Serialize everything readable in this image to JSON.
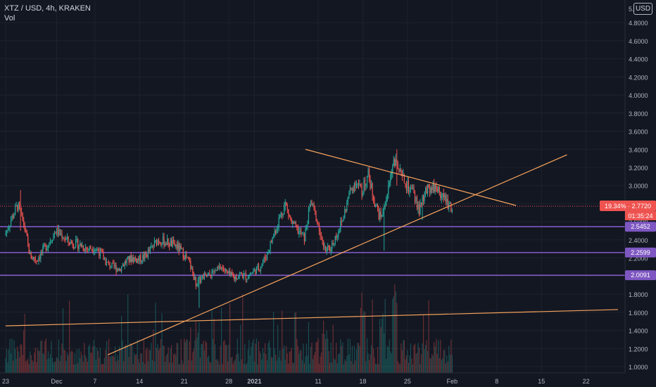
{
  "header": {
    "symbol_line": "XTZ / USD, 4h, KRAKEN",
    "volume_label": "Vol",
    "currency_button": "USD"
  },
  "price_tags": {
    "current": {
      "change": "19.34%",
      "price": "2.7720",
      "countdown": "01:35:24",
      "color": "#ef5350"
    },
    "levels": [
      {
        "price": "2.5452",
        "color": "#7e57c2"
      },
      {
        "price": "2.2599",
        "color": "#7e57c2"
      },
      {
        "price": "2.0091",
        "color": "#7e57c2"
      }
    ]
  },
  "colors": {
    "background": "#131722",
    "up": "#26a69a",
    "down": "#ef5350",
    "trendline": "#f7a35c",
    "level_line": "#7e57c2",
    "grid": "#1e222d"
  },
  "chart_data": {
    "type": "candlestick",
    "timeframe": "4h",
    "y_axis": {
      "range": [
        0.93,
        5.05
      ],
      "ticks": [
        "4.8000",
        "4.6000",
        "4.4000",
        "4.2000",
        "4.0000",
        "3.8000",
        "3.6000",
        "3.4000",
        "3.2000",
        "3.0000",
        "2.8000",
        "2.6000",
        "2.4000",
        "2.2000",
        "2.0000",
        "1.8000",
        "1.6000",
        "1.4000",
        "1.2000",
        "1.0000"
      ],
      "top_partial_label": "5."
    },
    "x_axis": {
      "ticks": [
        "23",
        "Dec",
        "7",
        "14",
        "21",
        "28",
        "2021",
        "11",
        "18",
        "25",
        "Feb",
        "8",
        "15",
        "22"
      ],
      "range": [
        "2020-11-23",
        "2021-02-27"
      ]
    },
    "price_path": [
      [
        "2020-11-23",
        2.45
      ],
      [
        "2020-11-24",
        2.62
      ],
      [
        "2020-11-25",
        2.78
      ],
      [
        "2020-11-26",
        2.58
      ],
      [
        "2020-11-27",
        2.22
      ],
      [
        "2020-11-28",
        2.18
      ],
      [
        "2020-11-29",
        2.28
      ],
      [
        "2020-11-30",
        2.38
      ],
      [
        "2020-12-01",
        2.5
      ],
      [
        "2020-12-02",
        2.45
      ],
      [
        "2020-12-03",
        2.38
      ],
      [
        "2020-12-04",
        2.36
      ],
      [
        "2020-12-05",
        2.34
      ],
      [
        "2020-12-06",
        2.3
      ],
      [
        "2020-12-07",
        2.32
      ],
      [
        "2020-12-08",
        2.26
      ],
      [
        "2020-12-09",
        2.14
      ],
      [
        "2020-12-10",
        2.1
      ],
      [
        "2020-12-11",
        2.08
      ],
      [
        "2020-12-12",
        2.16
      ],
      [
        "2020-12-13",
        2.2
      ],
      [
        "2020-12-14",
        2.18
      ],
      [
        "2020-12-15",
        2.22
      ],
      [
        "2020-12-16",
        2.3
      ],
      [
        "2020-12-17",
        2.4
      ],
      [
        "2020-12-18",
        2.38
      ],
      [
        "2020-12-19",
        2.36
      ],
      [
        "2020-12-20",
        2.33
      ],
      [
        "2020-12-21",
        2.25
      ],
      [
        "2020-12-22",
        2.14
      ],
      [
        "2020-12-23",
        1.92
      ],
      [
        "2020-12-24",
        1.98
      ],
      [
        "2020-12-25",
        2.0
      ],
      [
        "2020-12-26",
        2.05
      ],
      [
        "2020-12-27",
        2.1
      ],
      [
        "2020-12-28",
        2.02
      ],
      [
        "2020-12-29",
        1.98
      ],
      [
        "2020-12-30",
        2.02
      ],
      [
        "2020-12-31",
        1.99
      ],
      [
        "2021-01-01",
        2.05
      ],
      [
        "2021-01-02",
        2.1
      ],
      [
        "2021-01-03",
        2.22
      ],
      [
        "2021-01-04",
        2.42
      ],
      [
        "2021-01-05",
        2.62
      ],
      [
        "2021-01-06",
        2.8
      ],
      [
        "2021-01-07",
        2.58
      ],
      [
        "2021-01-08",
        2.5
      ],
      [
        "2021-01-09",
        2.42
      ],
      [
        "2021-01-10",
        2.82
      ],
      [
        "2021-01-11",
        2.62
      ],
      [
        "2021-01-12",
        2.28
      ],
      [
        "2021-01-13",
        2.3
      ],
      [
        "2021-01-14",
        2.45
      ],
      [
        "2021-01-15",
        2.62
      ],
      [
        "2021-01-16",
        2.9
      ],
      [
        "2021-01-17",
        3.05
      ],
      [
        "2021-01-18",
        2.95
      ],
      [
        "2021-01-19",
        3.12
      ],
      [
        "2021-01-20",
        2.82
      ],
      [
        "2021-01-21",
        2.62
      ],
      [
        "2021-01-22",
        2.9
      ],
      [
        "2021-01-23",
        3.3
      ],
      [
        "2021-01-24",
        3.12
      ],
      [
        "2021-01-25",
        3.0
      ],
      [
        "2021-01-26",
        2.92
      ],
      [
        "2021-01-27",
        2.72
      ],
      [
        "2021-01-28",
        2.92
      ],
      [
        "2021-01-29",
        3.0
      ],
      [
        "2021-01-30",
        2.95
      ],
      [
        "2021-01-31",
        2.85
      ],
      [
        "2021-02-01",
        2.77
      ]
    ],
    "wick_extremes": [
      [
        "2020-11-25",
        2.95,
        2.5
      ],
      [
        "2020-12-23",
        1.99,
        1.65
      ],
      [
        "2021-01-21",
        2.8,
        2.28
      ],
      [
        "2021-01-23",
        3.4,
        3.0
      ],
      [
        "2021-01-27",
        2.9,
        2.62
      ]
    ],
    "volume_spikes": [
      [
        "2021-01-18",
        1.0
      ],
      [
        "2021-01-23",
        0.85
      ],
      [
        "2021-01-21",
        0.65
      ],
      [
        "2021-01-12",
        0.55
      ],
      [
        "2020-12-23",
        0.5
      ]
    ],
    "trend_lines": [
      {
        "from": [
          "2020-12-09",
          1.13
        ],
        "to": [
          "2021-02-19",
          3.34
        ]
      },
      {
        "from": [
          "2021-01-09",
          3.4
        ],
        "to": [
          "2021-02-11",
          2.78
        ]
      },
      {
        "from": [
          "2020-11-23",
          1.45
        ],
        "to": [
          "2021-02-27",
          1.63
        ]
      }
    ],
    "horizontal_levels": [
      2.5452,
      2.2599,
      2.0091
    ],
    "last_price": 2.772
  }
}
